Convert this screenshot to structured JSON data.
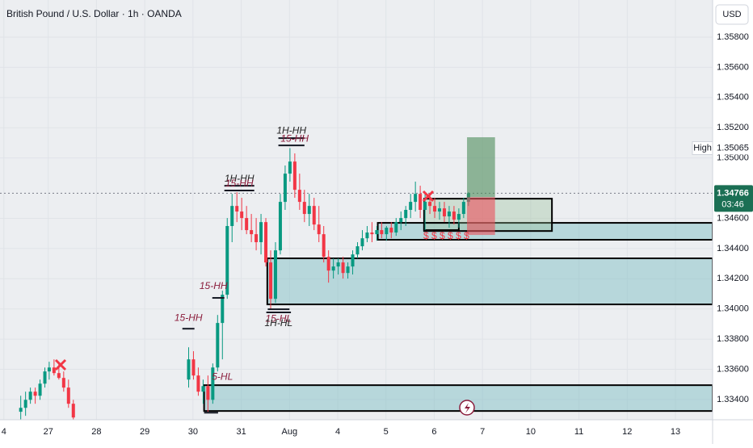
{
  "chart_data": {
    "type": "candlestick",
    "title": "British Pound / U.S. Dollar · 1h · OANDA",
    "currency": "USD",
    "up_color": "#089981",
    "down_color": "#f23645",
    "x": [
      0.43,
      0.53,
      0.63,
      0.73,
      0.83,
      0.93,
      1.02,
      1.12,
      1.22,
      1.32,
      1.42,
      1.52,
      3.91,
      4.01,
      4.11,
      4.21,
      4.31,
      4.41,
      4.51,
      4.61,
      4.71,
      4.81,
      4.91,
      5.01,
      5.11,
      5.21,
      5.31,
      5.41,
      5.51,
      5.61,
      5.71,
      5.81,
      5.91,
      6.01,
      6.11,
      6.21,
      6.31,
      6.41,
      6.51,
      6.61,
      6.71,
      6.81,
      6.91,
      7.01,
      7.11,
      7.21,
      7.31,
      7.41,
      7.51,
      7.61,
      7.71,
      7.81,
      7.91,
      8.01,
      8.11,
      8.21,
      8.31,
      8.41,
      8.51,
      8.61,
      8.71,
      8.81,
      8.91,
      9.01,
      9.11,
      9.21,
      9.31,
      9.41,
      9.51,
      9.61,
      9.71
    ],
    "open": [
      1.33319,
      1.33345,
      1.33398,
      1.33452,
      1.33425,
      1.33505,
      1.33586,
      1.33612,
      1.33575,
      1.33543,
      1.33479,
      1.33372,
      1.33532,
      1.33666,
      1.33559,
      1.33452,
      1.33489,
      1.33398,
      1.33612,
      1.33907,
      1.34094,
      1.34549,
      1.34682,
      1.34645,
      1.34602,
      1.34522,
      1.34495,
      1.34442,
      1.34575,
      1.34308,
      1.34067,
      1.34388,
      1.34709,
      1.34896,
      1.34976,
      1.34789,
      1.34709,
      1.34629,
      1.34682,
      1.34559,
      1.34495,
      1.34345,
      1.34254,
      1.34281,
      1.34308,
      1.34238,
      1.34281,
      1.34361,
      1.34415,
      1.34468,
      1.34506,
      1.34495,
      1.34522,
      1.34495,
      1.34538,
      1.34506,
      1.34575,
      1.34602,
      1.34656,
      1.34709,
      1.34762,
      1.34656,
      1.34709,
      1.34682,
      1.34645,
      1.34666,
      1.34613,
      1.34645,
      1.34591,
      1.34629,
      1.34709
    ],
    "high": [
      1.33425,
      1.33452,
      1.33479,
      1.33479,
      1.33532,
      1.33612,
      1.3365,
      1.33666,
      1.33639,
      1.33586,
      1.33532,
      1.33398,
      1.33746,
      1.3372,
      1.33612,
      1.33532,
      1.33559,
      1.33639,
      1.3396,
      1.34121,
      1.34602,
      1.34762,
      1.34773,
      1.34736,
      1.34682,
      1.34629,
      1.34602,
      1.34629,
      1.34602,
      1.34388,
      1.34442,
      1.34762,
      1.3495,
      1.35065,
      1.3503,
      1.34896,
      1.34789,
      1.34762,
      1.34736,
      1.34682,
      1.34549,
      1.34388,
      1.34335,
      1.34335,
      1.34345,
      1.34308,
      1.34388,
      1.34442,
      1.34522,
      1.34549,
      1.34575,
      1.34549,
      1.34575,
      1.34549,
      1.34575,
      1.34602,
      1.34645,
      1.34682,
      1.34762,
      1.34843,
      1.34816,
      1.34773,
      1.34762,
      1.34736,
      1.34709,
      1.34709,
      1.34682,
      1.34682,
      1.34666,
      1.34736,
      1.34773
    ],
    "low": [
      1.33265,
      1.33292,
      1.33372,
      1.33372,
      1.33398,
      1.33479,
      1.33532,
      1.33559,
      1.33532,
      1.33452,
      1.33345,
      1.33265,
      1.33479,
      1.33532,
      1.33425,
      1.33372,
      1.33319,
      1.33372,
      1.33586,
      1.33666,
      1.34067,
      1.34442,
      1.34575,
      1.34522,
      1.34495,
      1.34442,
      1.34388,
      1.34361,
      1.34281,
      1.33998,
      1.3404,
      1.34361,
      1.34656,
      1.34843,
      1.34736,
      1.34656,
      1.34575,
      1.34549,
      1.34522,
      1.34442,
      1.34308,
      1.34174,
      1.34201,
      1.34228,
      1.34201,
      1.34201,
      1.34228,
      1.34335,
      1.34388,
      1.34442,
      1.34442,
      1.34452,
      1.34468,
      1.34452,
      1.34468,
      1.34484,
      1.34522,
      1.34549,
      1.34602,
      1.34645,
      1.34602,
      1.34522,
      1.34629,
      1.34602,
      1.34591,
      1.34575,
      1.34538,
      1.34559,
      1.34538,
      1.34602,
      1.34682
    ],
    "close": [
      1.33345,
      1.33398,
      1.33452,
      1.33425,
      1.33505,
      1.33586,
      1.33612,
      1.33575,
      1.33543,
      1.33479,
      1.33372,
      1.33281,
      1.33666,
      1.33559,
      1.33452,
      1.33489,
      1.33398,
      1.33612,
      1.33907,
      1.34094,
      1.34549,
      1.34682,
      1.34645,
      1.34602,
      1.34522,
      1.34495,
      1.34442,
      1.34575,
      1.34308,
      1.34067,
      1.34388,
      1.34709,
      1.34896,
      1.34976,
      1.34789,
      1.34709,
      1.34629,
      1.34682,
      1.34559,
      1.34495,
      1.34345,
      1.34254,
      1.34281,
      1.34308,
      1.34238,
      1.34281,
      1.34361,
      1.34415,
      1.34468,
      1.34506,
      1.34495,
      1.34522,
      1.34495,
      1.34538,
      1.34506,
      1.34575,
      1.34602,
      1.34656,
      1.34709,
      1.34762,
      1.34656,
      1.34709,
      1.34682,
      1.34645,
      1.34666,
      1.34613,
      1.34645,
      1.34591,
      1.34629,
      1.34709,
      1.34766
    ],
    "xlim": [
      0,
      14.77
    ],
    "xticks": [
      {
        "value": 0.08,
        "label": "4"
      },
      {
        "value": 1,
        "label": "27"
      },
      {
        "value": 2,
        "label": "28"
      },
      {
        "value": 3,
        "label": "29"
      },
      {
        "value": 4,
        "label": "30"
      },
      {
        "value": 5,
        "label": "31"
      },
      {
        "value": 6,
        "label": "Aug"
      },
      {
        "value": 7,
        "label": "4"
      },
      {
        "value": 8,
        "label": "5"
      },
      {
        "value": 9,
        "label": "6"
      },
      {
        "value": 10,
        "label": "7"
      },
      {
        "value": 11,
        "label": "10"
      },
      {
        "value": 12,
        "label": "11"
      },
      {
        "value": 13,
        "label": "12"
      },
      {
        "value": 14,
        "label": "13"
      }
    ],
    "ylim": [
      1.33266,
      1.36046
    ],
    "yticks": [
      {
        "value": 1.358,
        "label": "1.35800"
      },
      {
        "value": 1.356,
        "label": "1.35600"
      },
      {
        "value": 1.354,
        "label": "1.35400"
      },
      {
        "value": 1.352,
        "label": "1.35200"
      },
      {
        "value": 1.35,
        "label": "1.35000"
      },
      {
        "value": 1.346,
        "label": "1.34600"
      },
      {
        "value": 1.344,
        "label": "1.34400"
      },
      {
        "value": 1.342,
        "label": "1.34200"
      },
      {
        "value": 1.34,
        "label": "1.34000"
      },
      {
        "value": 1.338,
        "label": "1.33800"
      },
      {
        "value": 1.336,
        "label": "1.33600"
      },
      {
        "value": 1.334,
        "label": "1.33400"
      }
    ],
    "grid": true,
    "session_high": {
      "label": "High",
      "value": 1.35065
    },
    "last_price": {
      "value": 1.34766,
      "countdown": "03:46",
      "color": "#1b6f54"
    },
    "zones": [
      {
        "x": [
          7.83,
          14.77
        ],
        "y": [
          1.3457,
          1.34458
        ],
        "fill": "rgba(120,186,194,0.45)",
        "stroke": "#000000"
      },
      {
        "x": [
          5.54,
          14.77
        ],
        "y": [
          1.34335,
          1.3403
        ],
        "fill": "rgba(120,186,194,0.45)",
        "stroke": "#000000"
      },
      {
        "x": [
          4.23,
          14.77
        ],
        "y": [
          1.33495,
          1.33324
        ],
        "fill": "rgba(120,186,194,0.45)",
        "stroke": "#000000"
      },
      {
        "x": [
          8.79,
          11.44
        ],
        "y": [
          1.3473,
          1.34516
        ],
        "fill": "rgba(150,190,150,0.35)",
        "stroke": "#000000"
      },
      {
        "x": [
          8.79,
          9.51
        ],
        "y": [
          1.3457,
          1.34522
        ],
        "fill": "none",
        "stroke": "#000000"
      },
      {
        "x": [
          9.68,
          10.26
        ],
        "y": [
          1.35137,
          1.3474
        ],
        "fill": "rgba(76,140,90,0.6)",
        "stroke": null
      },
      {
        "x": [
          9.68,
          10.26
        ],
        "y": [
          1.3474,
          1.3449
        ],
        "fill": "rgba(235,80,90,0.6)",
        "stroke": null
      }
    ],
    "annotations": [
      {
        "text": "1H-HH",
        "y": 1.35131,
        "x": [
          5.77,
          6.31
        ],
        "color": "#222222"
      },
      {
        "text": "15-HH",
        "y": 1.35083,
        "x": [
          5.77,
          6.31
        ],
        "color": "#8b1c3b"
      },
      {
        "text": "1H-HH",
        "y": 1.34816,
        "x": [
          4.65,
          5.27
        ],
        "color": "#222222"
      },
      {
        "text": "15-HH",
        "y": 1.34784,
        "x": [
          4.65,
          5.27
        ],
        "color": "#8b1c3b"
      },
      {
        "text": "15-HH",
        "y": 1.34073,
        "x": [
          4.4,
          4.65
        ],
        "color": "#8b1c3b"
      },
      {
        "text": "15-HH",
        "y": 1.33869,
        "x": [
          3.78,
          4.03
        ],
        "color": "#8b1c3b"
      },
      {
        "text": "15-HL",
        "y": 1.33998,
        "x": [
          5.55,
          6.0
        ],
        "color": "#8b1c3b"
      },
      {
        "text": "1H-HL",
        "y": 1.33977,
        "x": [
          5.52,
          6.03
        ],
        "color": "#222222"
      },
      {
        "text": "5-HL",
        "y": 1.33313,
        "x": [
          4.23,
          4.52
        ],
        "color": "#8b1c3b"
      }
    ],
    "liquidity_label": "$ $ $ $ $ $"
  }
}
